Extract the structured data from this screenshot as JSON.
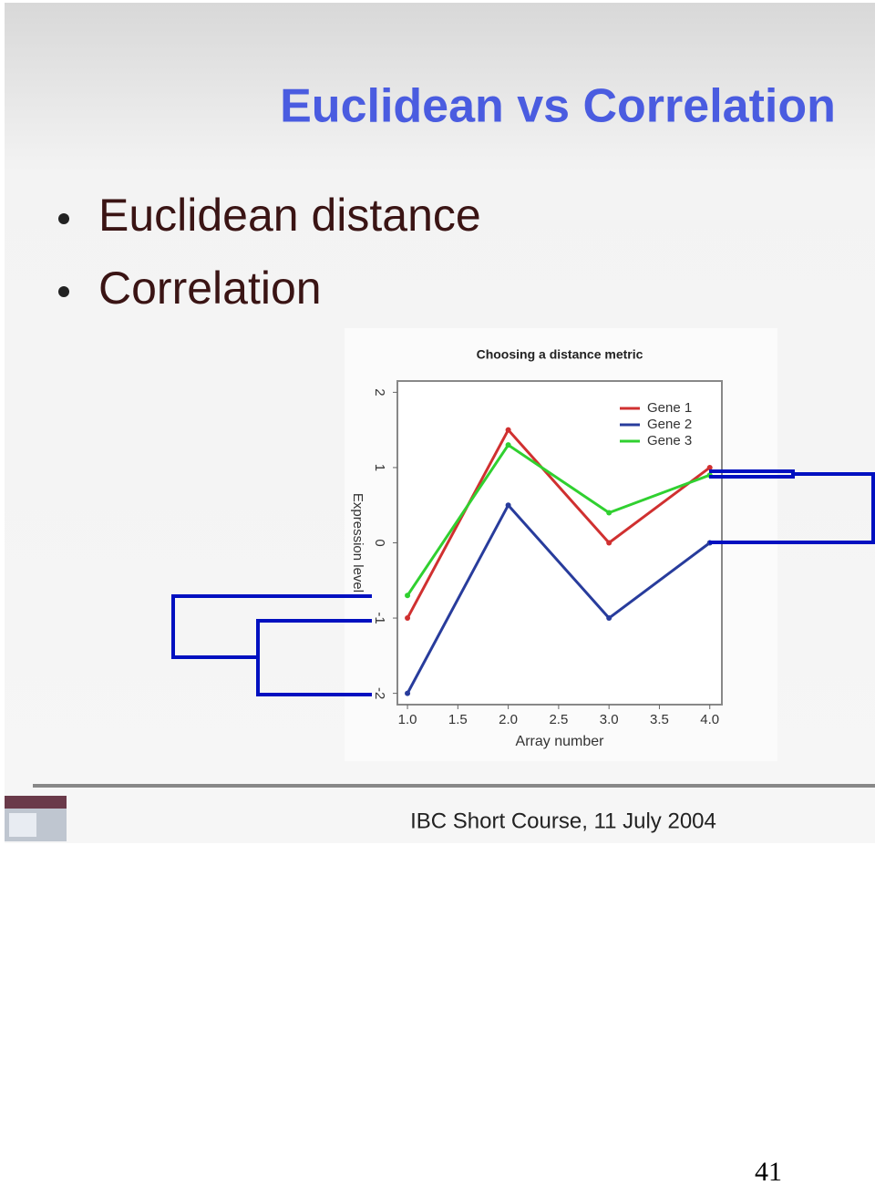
{
  "header": {
    "title": "Euclidean vs Correlation"
  },
  "bullets": [
    "Euclidean distance",
    "Correlation"
  ],
  "chart_data": {
    "type": "line",
    "title": "Choosing a distance metric",
    "x_label": "Array number",
    "y_label": "Expression level",
    "x": [
      1,
      2,
      3,
      4
    ],
    "series": [
      {
        "name": "Gene 1",
        "color": "#d03030",
        "values": [
          -1,
          1.5,
          0,
          1
        ]
      },
      {
        "name": "Gene 2",
        "color": "#283c9c",
        "values": [
          -2,
          0.5,
          -1,
          0
        ]
      },
      {
        "name": "Gene 3",
        "color": "#30d030",
        "values": [
          -0.7,
          1.3,
          0.4,
          0.9
        ]
      }
    ],
    "xlim": [
      0.9,
      4.12
    ],
    "ylim": [
      -2.15,
      2.15
    ],
    "xticks": [
      {
        "value": 1,
        "label": "1.0"
      },
      1.5,
      {
        "value": 2,
        "label": "2.0"
      },
      2.5,
      {
        "value": 3,
        "label": "3.0"
      },
      3.5,
      {
        "value": 4,
        "label": "4.0"
      }
    ],
    "yticks": [
      -2,
      -1,
      0,
      1,
      2
    ],
    "grid": false,
    "legend": "upper right"
  },
  "footer": "IBC Short Course, 11 July 2004",
  "page_number": "41"
}
